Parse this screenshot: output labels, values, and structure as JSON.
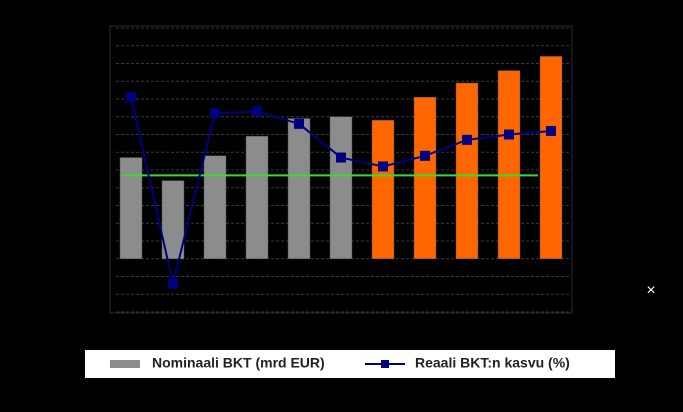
{
  "chart_data": {
    "type": "bar_line",
    "categories": [
      null,
      null,
      null,
      null,
      null,
      null,
      null,
      null,
      null,
      null,
      null
    ],
    "series": [
      {
        "name": "Nominaali BKT (mrd EUR)",
        "type": "bar",
        "color": "#8c8c8c",
        "colors": [
          "#8c8c8c",
          "#8c8c8c",
          "#8c8c8c",
          "#8c8c8c",
          "#8c8c8c",
          "#8c8c8c",
          "#ff6600",
          "#ff6600",
          "#ff6600",
          "#ff6600",
          "#ff6600"
        ],
        "values": [
          57,
          44,
          58,
          69,
          79,
          80,
          78,
          91,
          99,
          106,
          114
        ]
      },
      {
        "name": "Reaali BKT:n kasvu (%)",
        "type": "line",
        "color": "#000080",
        "values": [
          91,
          -14,
          82,
          83,
          76,
          57,
          52,
          58,
          67,
          70,
          72
        ]
      }
    ],
    "reference_line": {
      "value": 47,
      "color": "#33dd33"
    },
    "ylim": [
      -30,
      130
    ],
    "yticks": [
      -30,
      -20,
      -10,
      0,
      10,
      20,
      30,
      40,
      50,
      60,
      70,
      80,
      90,
      100,
      110,
      120,
      130
    ],
    "grid": true
  },
  "close_button": "×"
}
